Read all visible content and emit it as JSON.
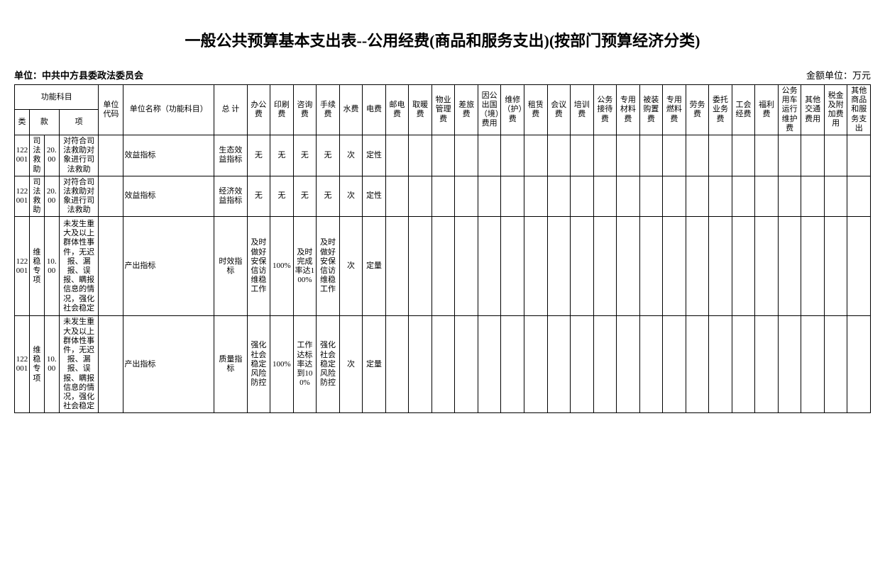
{
  "title": "一般公共预算基本支出表--公用经费(商品和服务支出)(按部门预算经济分类)",
  "unit_label": "单位：",
  "unit_name": "中共中方县委政法委员会",
  "currency_unit": "金额单位：万元",
  "header": {
    "func_subject": "功能科目",
    "unit_code": "单位代码",
    "unit_name_col": "单位名称（功能科目）",
    "total": "总 计",
    "lei": "类",
    "kuan": "款",
    "xiang": "项",
    "cols": [
      "办公费",
      "印刷费",
      "咨询费",
      "手续费",
      "水费",
      "电费",
      "邮电费",
      "取暖费",
      "物业管理费",
      "差旅费",
      "因公出国（境）费用",
      "维修（护）费",
      "租赁费",
      "会议费",
      "培训费",
      "公务接待费",
      "专用材料费",
      "被装购置费",
      "专用燃料费",
      "劳务费",
      "委托业务费",
      "工会经费",
      "福利费",
      "公务用车运行维护费",
      "其他交通费用",
      "税金及附加费用",
      "其他商品和服务支出"
    ]
  },
  "rows": [
    {
      "lei": "122001",
      "kuan": "司法救助",
      "kuan2": "20.00",
      "xiang": "对符合司法救助对象进行司法救助",
      "name": "效益指标",
      "total": "生态效益指标",
      "c": [
        "无",
        "无",
        "无",
        "无",
        "次",
        "定性",
        "",
        "",
        "",
        "",
        "",
        "",
        "",
        "",
        "",
        "",
        "",
        "",
        "",
        "",
        "",
        "",
        "",
        "",
        "",
        "",
        ""
      ]
    },
    {
      "lei": "122001",
      "kuan": "司法救助",
      "kuan2": "20.00",
      "xiang": "对符合司法救助对象进行司法救助",
      "name": "效益指标",
      "total": "经济效益指标",
      "c": [
        "无",
        "无",
        "无",
        "无",
        "次",
        "定性",
        "",
        "",
        "",
        "",
        "",
        "",
        "",
        "",
        "",
        "",
        "",
        "",
        "",
        "",
        "",
        "",
        "",
        "",
        "",
        "",
        ""
      ]
    },
    {
      "lei": "122001",
      "kuan": "维稳专项",
      "kuan2": "10.00",
      "xiang": "未发生重大及以上群体性事件，无迟报、漏报、误报、瞒报信息的情况，强化社会稳定",
      "name": "产出指标",
      "total": "时效指标",
      "c": [
        "及时做好安保信访维稳工作",
        "100%",
        "及时完成率达100%",
        "及时做好安保信访维稳工作",
        "次",
        "定量",
        "",
        "",
        "",
        "",
        "",
        "",
        "",
        "",
        "",
        "",
        "",
        "",
        "",
        "",
        "",
        "",
        "",
        "",
        "",
        "",
        ""
      ]
    },
    {
      "lei": "122001",
      "kuan": "维稳专项",
      "kuan2": "10.00",
      "xiang": "未发生重大及以上群体性事件，无迟报、漏报、误报、瞒报信息的情况，强化社会稳定",
      "name": "产出指标",
      "total": "质量指标",
      "c": [
        "强化社会稳定风险防控",
        "100%",
        "工作达标率达到100%",
        "强化社会稳定风险防控",
        "次",
        "定量",
        "",
        "",
        "",
        "",
        "",
        "",
        "",
        "",
        "",
        "",
        "",
        "",
        "",
        "",
        "",
        "",
        "",
        "",
        "",
        "",
        ""
      ]
    }
  ]
}
